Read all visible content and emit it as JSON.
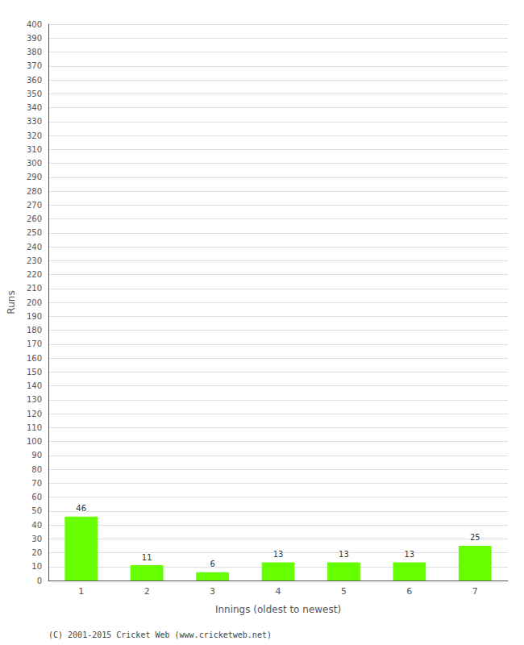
{
  "chart_data": {
    "type": "bar",
    "categories": [
      "1",
      "2",
      "3",
      "4",
      "5",
      "6",
      "7"
    ],
    "values": [
      46,
      11,
      6,
      13,
      13,
      13,
      25
    ],
    "color": "#66ff00",
    "xlabel": "Innings (oldest to newest)",
    "ylabel": "Runs",
    "ylim": [
      0,
      400
    ],
    "yticks": [
      0,
      10,
      20,
      30,
      40,
      50,
      60,
      70,
      80,
      90,
      100,
      110,
      120,
      130,
      140,
      150,
      160,
      170,
      180,
      190,
      200,
      210,
      220,
      230,
      240,
      250,
      260,
      270,
      280,
      290,
      300,
      310,
      320,
      330,
      340,
      350,
      360,
      370,
      380,
      390,
      400
    ],
    "grid": true,
    "data_labels": true,
    "annotations": [
      "(C) 2001-2015 Cricket Web (www.cricketweb.net)"
    ]
  }
}
